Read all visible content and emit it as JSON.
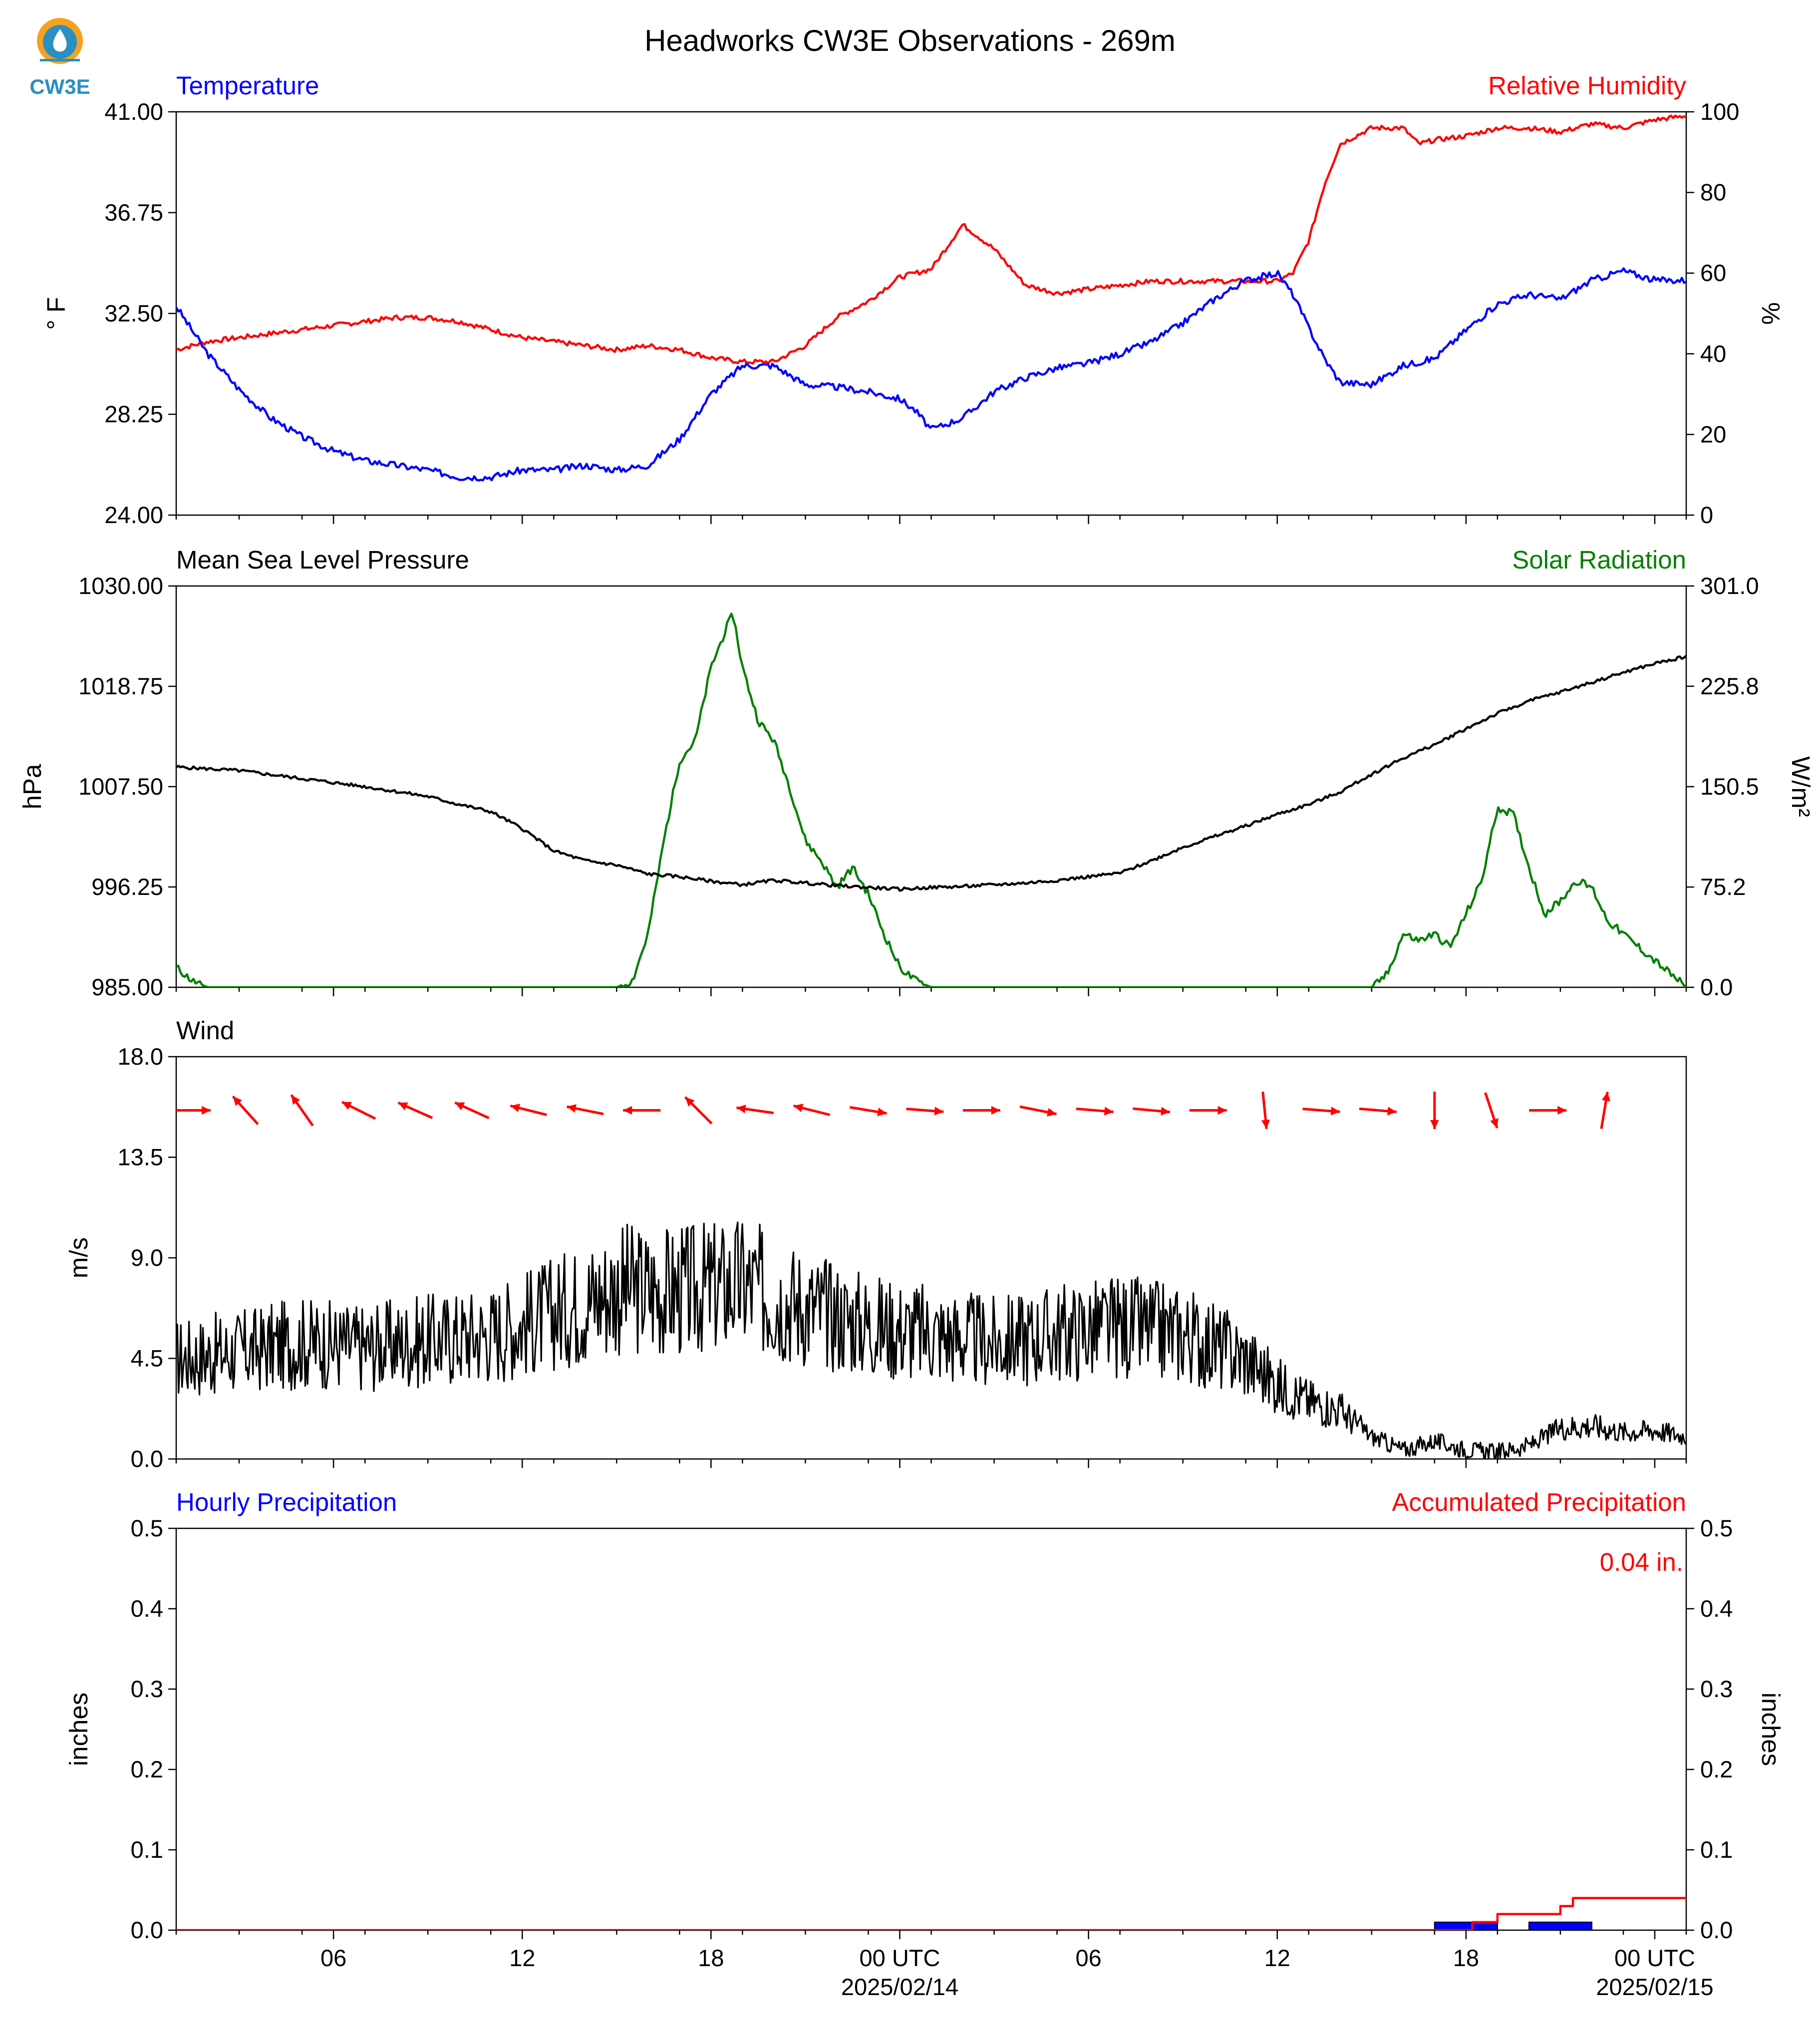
{
  "logo": {
    "text": "CW3E",
    "color": "#2a8fc2"
  },
  "colors": {
    "temperature": "#0000ff",
    "humidity": "#ff0000",
    "pressure": "#000000",
    "solar": "#008000",
    "wind": "#000000",
    "wind_arrows": "#ff0000",
    "hourly": "#0000ff",
    "accum": "#ff0000"
  },
  "chart_data": [
    {
      "type": "line",
      "title": "Headworks CW3E Observations - 269m",
      "left_title": "Temperature",
      "right_title": "Relative Humidity",
      "ylabel": "° F",
      "ylabel_right": "%",
      "ylim": [
        24.0,
        41.0
      ],
      "ylim_right": [
        0,
        100
      ],
      "yticks": [
        "24.00",
        "28.25",
        "32.50",
        "36.75",
        "41.00"
      ],
      "yticks_right": [
        "0",
        "20",
        "40",
        "60",
        "80",
        "100"
      ],
      "xlim_hours": [
        0,
        48
      ],
      "series": [
        {
          "name": "Temperature",
          "axis": "left",
          "x": [
            0,
            1,
            2,
            3,
            4,
            5,
            6,
            7,
            8,
            9,
            10,
            11,
            12,
            13,
            14,
            15,
            16,
            17,
            18,
            19,
            20,
            21,
            22,
            23,
            23.5,
            24,
            25,
            26,
            27,
            28,
            29,
            30,
            31,
            32,
            33,
            34,
            35,
            35.5,
            36,
            36.5,
            37,
            38,
            39,
            40,
            41,
            42,
            43,
            44,
            45,
            46,
            47,
            48
          ],
          "y": [
            32.8,
            30.8,
            29.3,
            28.1,
            27.3,
            26.7,
            26.3,
            26.1,
            25.9,
            25.6,
            25.6,
            25.9,
            25.9,
            26.1,
            25.9,
            26.1,
            27.2,
            29.1,
            30.3,
            30.3,
            29.5,
            29.4,
            29.2,
            28.9,
            28.4,
            27.6,
            28.1,
            29.2,
            29.8,
            30.2,
            30.4,
            30.8,
            31.3,
            32.1,
            33.1,
            33.9,
            34.2,
            33.3,
            31.9,
            30.6,
            29.6,
            29.5,
            30.3,
            30.6,
            31.8,
            32.9,
            33.3,
            33.1,
            33.9,
            34.3,
            33.9,
            33.9
          ]
        },
        {
          "name": "Relative Humidity",
          "axis": "right",
          "x": [
            0,
            1,
            2,
            3,
            4,
            5,
            6,
            7,
            8,
            9,
            10,
            11,
            12,
            13,
            14,
            15,
            16,
            17,
            18,
            19,
            20,
            21,
            22,
            23,
            24,
            25,
            26,
            27,
            28,
            29,
            30,
            31,
            32,
            33,
            34,
            35,
            35.5,
            36,
            36.5,
            37,
            38,
            39,
            39.5,
            40,
            41,
            42,
            43,
            44,
            45,
            46,
            47,
            48
          ],
          "y": [
            41,
            43,
            44,
            45,
            46,
            47,
            48,
            49,
            49,
            48,
            46,
            44,
            43,
            42,
            41,
            42,
            41,
            39,
            38,
            38,
            42,
            49,
            53,
            59,
            61,
            72,
            66,
            57,
            55,
            56,
            57,
            58,
            58,
            58,
            58,
            58,
            60,
            68,
            82,
            92,
            96,
            96,
            92,
            93,
            94,
            96,
            96,
            95,
            97,
            96,
            98,
            99
          ]
        }
      ]
    },
    {
      "type": "line",
      "left_title": "Mean Sea Level Pressure",
      "right_title": "Solar Radiation",
      "ylabel": "hPa",
      "ylabel_right": "W/m²",
      "ylim": [
        985.0,
        1030.0
      ],
      "ylim_right": [
        0.0,
        301.0
      ],
      "yticks": [
        "985.00",
        "996.25",
        "1007.50",
        "1018.75",
        "1030.00"
      ],
      "yticks_right": [
        "0.0",
        "75.2",
        "150.5",
        "225.8",
        "301.0"
      ],
      "xlim_hours": [
        0,
        48
      ],
      "series": [
        {
          "name": "Mean Sea Level Pressure",
          "axis": "left",
          "x": [
            0,
            2,
            4,
            6,
            8,
            9,
            10,
            11,
            12,
            13,
            14,
            15,
            16,
            17,
            18,
            19,
            20,
            21,
            22,
            23,
            24,
            25,
            26,
            27,
            28,
            29,
            30,
            31,
            32,
            33,
            34,
            35,
            36,
            37,
            38,
            39,
            40,
            41,
            42,
            43,
            44,
            45,
            46,
            47,
            48
          ],
          "y": [
            1009.7,
            1009.3,
            1008.4,
            1007.5,
            1006.4,
            1005.5,
            1004.7,
            1002.8,
            1000.3,
            999.2,
            998.7,
            997.7,
            997.4,
            996.9,
            996.5,
            997.0,
            996.7,
            996.4,
            996.2,
            996.0,
            996.2,
            996.3,
            996.5,
            996.7,
            997.0,
            997.4,
            997.8,
            999.2,
            1000.7,
            1001.9,
            1003.1,
            1004.4,
            1005.5,
            1006.9,
            1008.9,
            1010.7,
            1012.2,
            1014.0,
            1015.7,
            1017.1,
            1018.1,
            1019.2,
            1020.3,
            1021.3,
            1022.1
          ]
        },
        {
          "name": "Solar Radiation",
          "axis": "right",
          "x": [
            0,
            0.5,
            1,
            14,
            14.5,
            15,
            15.5,
            16,
            16.5,
            17,
            17.5,
            17.7,
            18,
            18.5,
            19,
            19.5,
            20,
            20.5,
            21,
            21.5,
            22,
            22.5,
            23,
            23.5,
            24,
            38,
            38.5,
            39,
            39.5,
            40,
            40.5,
            41,
            41.5,
            42,
            42.5,
            43,
            43.5,
            44,
            44.5,
            45,
            45.5,
            46,
            46.5,
            47,
            47.5,
            48
          ],
          "y": [
            15,
            5,
            0,
            0,
            5,
            40,
            110,
            170,
            185,
            240,
            270,
            280,
            240,
            200,
            185,
            150,
            110,
            95,
            75,
            90,
            70,
            40,
            15,
            5,
            0,
            0,
            10,
            40,
            35,
            40,
            30,
            55,
            80,
            135,
            130,
            90,
            55,
            65,
            80,
            75,
            50,
            40,
            30,
            20,
            10,
            0
          ]
        }
      ]
    },
    {
      "type": "line",
      "left_title": "Wind",
      "ylabel": "m/s",
      "ylim": [
        0.0,
        18.0
      ],
      "yticks": [
        "0.0",
        "4.5",
        "9.0",
        "13.5",
        "18.0"
      ],
      "xlim_hours": [
        0,
        48
      ],
      "series": [
        {
          "name": "Wind",
          "axis": "left",
          "x": [
            0,
            2,
            4,
            6,
            8,
            10,
            12,
            14,
            16,
            18,
            20,
            22,
            24,
            26,
            28,
            30,
            32,
            34,
            35,
            36,
            37,
            38,
            39,
            40,
            41,
            42,
            43,
            44,
            45,
            46,
            47,
            48
          ],
          "y": [
            4.5,
            4.8,
            5.2,
            5.0,
            5.3,
            5.6,
            6.5,
            7.6,
            7.5,
            7.8,
            6.8,
            6.0,
            5.6,
            5.2,
            5.6,
            5.9,
            5.6,
            4.5,
            3.3,
            2.6,
            2.2,
            1.0,
            0.4,
            0.8,
            0.4,
            0.3,
            0.6,
            1.4,
            1.5,
            1.2,
            1.3,
            1.0
          ]
        }
      ],
      "wind_arrows": {
        "x": [
          0.5,
          2.2,
          4.0,
          5.8,
          7.6,
          9.4,
          11.2,
          13.0,
          14.8,
          16.6,
          18.4,
          20.2,
          22.0,
          23.8,
          25.6,
          27.4,
          29.2,
          31.0,
          32.8,
          34.6,
          36.4,
          38.2,
          40.0,
          41.8,
          43.6,
          45.4
        ],
        "u": [
          1.0,
          -0.9,
          -0.7,
          -1.0,
          -0.9,
          -1.1,
          -1.2,
          -1.0,
          -1.3,
          -0.8,
          -1.4,
          -1.2,
          1.2,
          1.3,
          1.1,
          1.0,
          1.2,
          1.1,
          0.6,
          0.1,
          1.3,
          1.2,
          0.0,
          0.4,
          1.3,
          0.2
        ],
        "v": [
          0.0,
          1.0,
          1.0,
          0.5,
          0.4,
          0.5,
          0.3,
          0.2,
          0.0,
          0.8,
          0.2,
          0.3,
          -0.2,
          -0.1,
          0.0,
          -0.2,
          -0.1,
          -0.1,
          0.0,
          -1.0,
          -0.1,
          -0.1,
          -1.3,
          -1.2,
          0.0,
          1.2
        ]
      }
    },
    {
      "type": "bar",
      "left_title": "Hourly Precipitation",
      "right_title": "Accumulated Precipitation",
      "ylabel": "inches",
      "ylabel_right": "inches",
      "ylim": [
        0.0,
        0.5
      ],
      "ylim_right": [
        0.0,
        0.5
      ],
      "yticks": [
        "0.0",
        "0.1",
        "0.2",
        "0.3",
        "0.4",
        "0.5"
      ],
      "yticks_right": [
        "0.0",
        "0.1",
        "0.2",
        "0.3",
        "0.4",
        "0.5"
      ],
      "xlim_hours": [
        0,
        48
      ],
      "annotation": "0.04 in.",
      "bars": {
        "x": [
          40.0,
          43.0
        ],
        "width": [
          2.0,
          2.0
        ],
        "values": [
          0.01,
          0.01
        ]
      },
      "series": [
        {
          "name": "Accumulated Precipitation",
          "axis": "right",
          "x": [
            0,
            40.8,
            41.2,
            41.6,
            42.0,
            42.5,
            43.0,
            43.4,
            44.0,
            44.4,
            48
          ],
          "y": [
            0,
            0.0,
            0.01,
            0.01,
            0.02,
            0.02,
            0.02,
            0.02,
            0.03,
            0.04,
            0.04
          ]
        }
      ],
      "x_ticks": [
        {
          "hour": 5,
          "label": "06",
          "sub": ""
        },
        {
          "hour": 11,
          "label": "12",
          "sub": ""
        },
        {
          "hour": 17,
          "label": "18",
          "sub": ""
        },
        {
          "hour": 23,
          "label": "00 UTC",
          "sub": "2025/02/14"
        },
        {
          "hour": 29,
          "label": "06",
          "sub": ""
        },
        {
          "hour": 35,
          "label": "12",
          "sub": ""
        },
        {
          "hour": 41,
          "label": "18",
          "sub": ""
        },
        {
          "hour": 47,
          "label": "00 UTC",
          "sub": "2025/02/15"
        }
      ]
    }
  ]
}
